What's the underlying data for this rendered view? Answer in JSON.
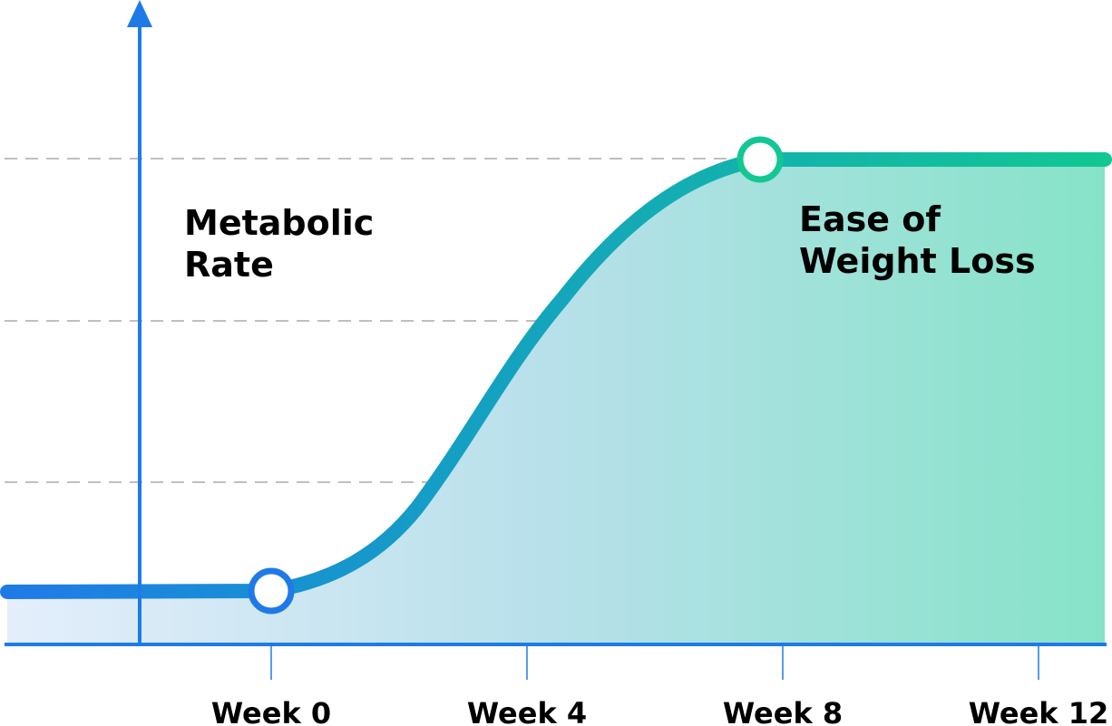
{
  "y_axis_label": "Metabolic Rate",
  "annotation": "Ease of Weight Loss",
  "x_labels": [
    "Week 0",
    "Week 4",
    "Week 8",
    "Week 12"
  ]
}
